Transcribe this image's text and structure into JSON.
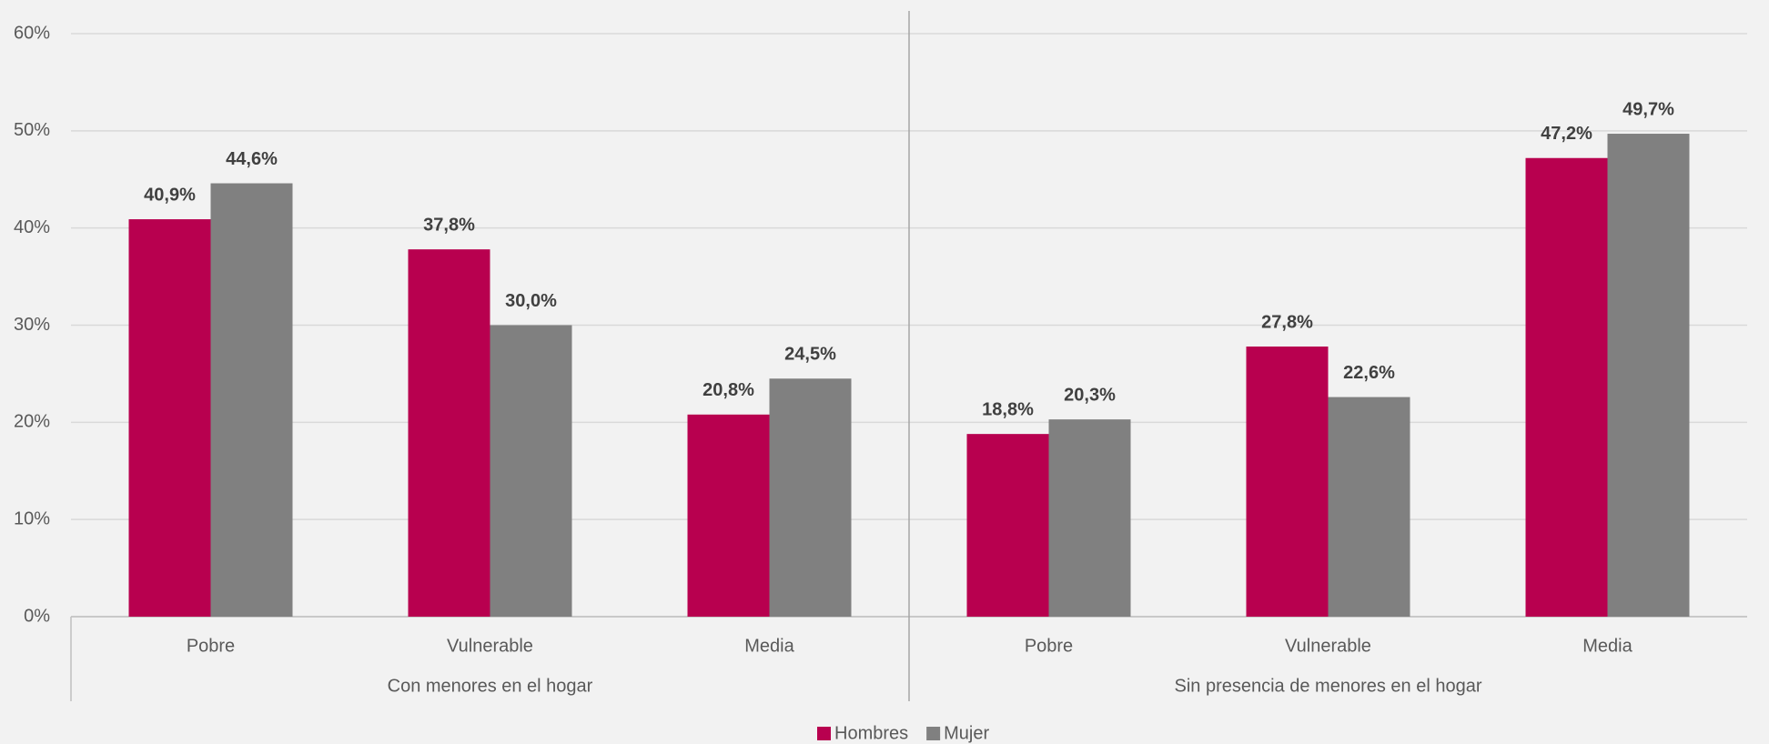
{
  "chart_data": {
    "type": "bar",
    "groups": [
      {
        "label": "Con menores en el hogar",
        "categories": [
          "Pobre",
          "Vulnerable",
          "Media"
        ]
      },
      {
        "label": "Sin presencia de menores en el hogar",
        "categories": [
          "Pobre",
          "Vulnerable",
          "Media"
        ]
      }
    ],
    "series": [
      {
        "name": "Hombres",
        "color": "#b8004f",
        "values": [
          40.9,
          37.8,
          20.8,
          18.8,
          27.8,
          47.2
        ],
        "value_labels": [
          "40,9%",
          "37,8%",
          "20,8%",
          "18,8%",
          "27,8%",
          "47,2%"
        ]
      },
      {
        "name": "Mujer",
        "color": "#808080",
        "values": [
          44.6,
          30.0,
          24.5,
          20.3,
          22.6,
          49.7
        ],
        "value_labels": [
          "44,6%",
          "30,0%",
          "24,5%",
          "20,3%",
          "22,6%",
          "49,7%"
        ]
      }
    ],
    "ylim": [
      0,
      60
    ],
    "yticks": [
      {
        "value": 0,
        "label": "0%"
      },
      {
        "value": 10,
        "label": "10%"
      },
      {
        "value": 20,
        "label": "20%"
      },
      {
        "value": 30,
        "label": "30%"
      },
      {
        "value": 40,
        "label": "40%"
      },
      {
        "value": 50,
        "label": "50%"
      },
      {
        "value": 60,
        "label": "60%"
      }
    ],
    "grid": true,
    "legend": "bottom"
  }
}
